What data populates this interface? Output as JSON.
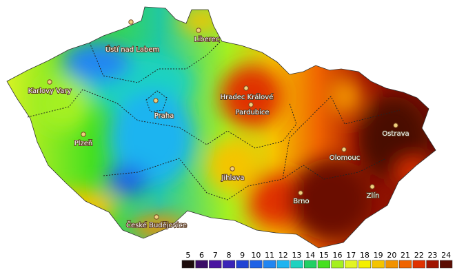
{
  "cities": [
    {
      "name": "Ústí nad Labem"
    },
    {
      "name": "Liberec"
    },
    {
      "name": "Karlovy Vary"
    },
    {
      "name": "Praha"
    },
    {
      "name": "Hradec Králové"
    },
    {
      "name": "Pardubice"
    },
    {
      "name": "Plzeň"
    },
    {
      "name": "Jihlava"
    },
    {
      "name": "České Budějovice"
    },
    {
      "name": "Brno"
    },
    {
      "name": "Olomouc"
    },
    {
      "name": "Ostrava"
    },
    {
      "name": "Zlín"
    }
  ],
  "legend": {
    "items": [
      {
        "value": 5,
        "color": "#1c0c0c"
      },
      {
        "value": 6,
        "color": "#3a0c66"
      },
      {
        "value": 7,
        "color": "#4a14a0"
      },
      {
        "value": 8,
        "color": "#3a24b8"
      },
      {
        "value": 9,
        "color": "#2244d4"
      },
      {
        "value": 10,
        "color": "#1f62e6"
      },
      {
        "value": 11,
        "color": "#2286f2"
      },
      {
        "value": 12,
        "color": "#1fb4f0"
      },
      {
        "value": 13,
        "color": "#1fd2c0"
      },
      {
        "value": 14,
        "color": "#22d064"
      },
      {
        "value": 15,
        "color": "#46e020"
      },
      {
        "value": 16,
        "color": "#a4f020"
      },
      {
        "value": 17,
        "color": "#e2f424"
      },
      {
        "value": 18,
        "color": "#f4f000"
      },
      {
        "value": 19,
        "color": "#f4c400"
      },
      {
        "value": 20,
        "color": "#f29200"
      },
      {
        "value": 21,
        "color": "#f06400"
      },
      {
        "value": 22,
        "color": "#e03200"
      },
      {
        "value": 23,
        "color": "#a01400"
      },
      {
        "value": 24,
        "color": "#5c0e04"
      }
    ]
  }
}
